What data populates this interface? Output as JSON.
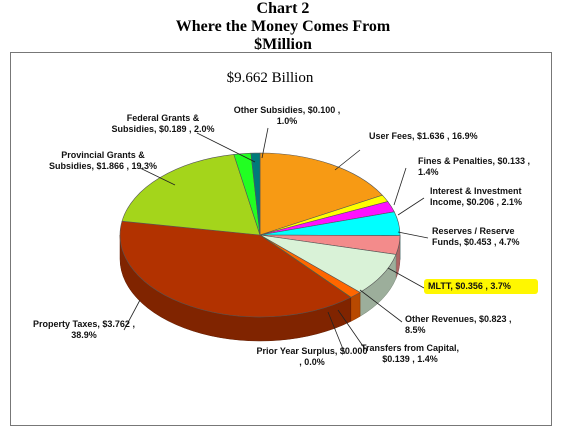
{
  "page": {
    "title_line1": "Chart 2",
    "title_line2": "Where the Money Comes From",
    "title_line3": "$Million"
  },
  "chart_data": {
    "type": "pie",
    "title": "$9.662 Billion",
    "start_angle_degrees": 0,
    "slices": [
      {
        "label": "User Fees",
        "value": 1.636,
        "percent": 16.9,
        "color": "#f79a14"
      },
      {
        "label": "Fines & Penalties",
        "value": 0.133,
        "percent": 1.4,
        "color": "#ffff00"
      },
      {
        "label": "Interest & Investment Income",
        "value": 0.206,
        "percent": 2.1,
        "color": "#ff11ff"
      },
      {
        "label": "Reserves / Reserve Funds",
        "value": 0.453,
        "percent": 4.7,
        "color": "#00ffff"
      },
      {
        "label": "MLTT",
        "value": 0.356,
        "percent": 3.7,
        "color": "#f38b8b"
      },
      {
        "label": "Other Revenues",
        "value": 0.823,
        "percent": 8.5,
        "color": "#d9f2d7"
      },
      {
        "label": "Transfers from Capital",
        "value": 0.139,
        "percent": 1.4,
        "color": "#ff6600"
      },
      {
        "label": "Prior Year Surplus",
        "value": 0.0,
        "percent": 0.0,
        "color": "#2a7b2a"
      },
      {
        "label": "Property Taxes",
        "value": 3.762,
        "percent": 38.9,
        "color": "#b23200"
      },
      {
        "label": "Provincial Grants & Subsidies",
        "value": 1.866,
        "percent": 19.3,
        "color": "#a4d51b"
      },
      {
        "label": "Federal Grants & Subsidies",
        "value": 0.189,
        "percent": 2.0,
        "color": "#22ff22"
      },
      {
        "label": "Other Subsidies",
        "value": 0.1,
        "percent": 1.0,
        "color": "#007a7a"
      }
    ],
    "highlighted_slice": "MLTT",
    "highlight_color": "#fff700",
    "labels": [
      {
        "slice": "User Fees",
        "lines": [
          "User Fees, $1.636 , 16.9%"
        ]
      },
      {
        "slice": "Fines & Penalties",
        "lines": [
          "Fines & Penalties, $0.133 ,",
          "1.4%"
        ]
      },
      {
        "slice": "Interest & Investment Income",
        "lines": [
          "Interest & Investment",
          "Income, $0.206 , 2.1%"
        ]
      },
      {
        "slice": "Reserves / Reserve Funds",
        "lines": [
          "Reserves / Reserve",
          "Funds, $0.453 , 4.7%"
        ]
      },
      {
        "slice": "MLTT",
        "lines": [
          "MLTT, $0.356 , 3.7%"
        ]
      },
      {
        "slice": "Other Revenues",
        "lines": [
          "Other Revenues, $0.823 ,",
          "8.5%"
        ]
      },
      {
        "slice": "Transfers from Capital",
        "lines": [
          "Transfers from Capital,",
          "$0.139 , 1.4%"
        ]
      },
      {
        "slice": "Prior Year Surplus",
        "lines": [
          "Prior Year Surplus, $0.000",
          ", 0.0%"
        ]
      },
      {
        "slice": "Property Taxes",
        "lines": [
          "Property Taxes, $3.762 ,",
          "38.9%"
        ]
      },
      {
        "slice": "Provincial Grants & Subsidies",
        "lines": [
          "Provincial Grants &",
          "Subsidies, $1.866 , 19.3%"
        ]
      },
      {
        "slice": "Federal Grants & Subsidies",
        "lines": [
          "Federal Grants &",
          "Subsidies, $0.189 , 2.0%"
        ]
      },
      {
        "slice": "Other Subsidies",
        "lines": [
          "Other Subsidies, $0.100 ,",
          "1.0%"
        ]
      }
    ]
  }
}
